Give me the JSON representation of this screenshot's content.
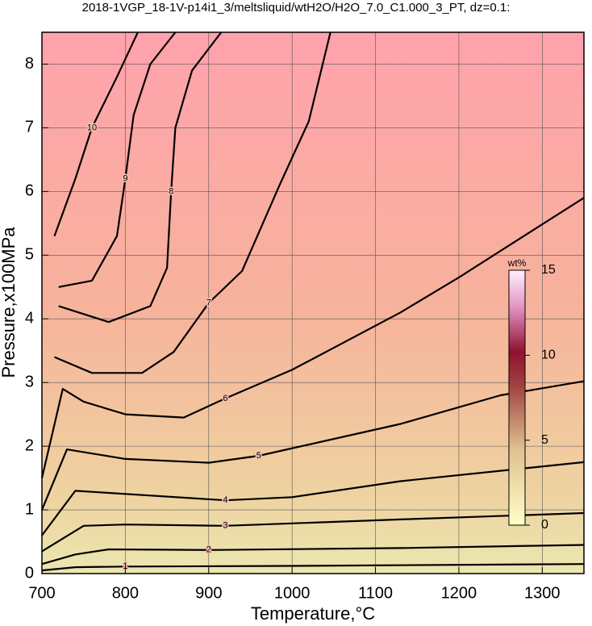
{
  "chart_data": {
    "type": "contour",
    "title": "2018-1VGP_18-1V-p14i1_3/meltsliquid/wtH2O/H2O_7.0_C1.000_3_PT, dz=0.1:",
    "xlabel": "Temperature,°C",
    "ylabel": "Pressure,x100MPa",
    "xlim": [
      700,
      1350
    ],
    "ylim": [
      0,
      8.5
    ],
    "xticks": [
      700,
      800,
      900,
      1000,
      1100,
      1200,
      1300
    ],
    "yticks": [
      0,
      1,
      2,
      3,
      4,
      5,
      6,
      7,
      8
    ],
    "grid": true,
    "series": [
      {
        "name": "1",
        "x": [
          700,
          740,
          800,
          1000,
          1350
        ],
        "y": [
          0.05,
          0.1,
          0.11,
          0.12,
          0.15
        ]
      },
      {
        "name": "2",
        "x": [
          700,
          740,
          780,
          900,
          1130,
          1350
        ],
        "y": [
          0.15,
          0.3,
          0.38,
          0.37,
          0.4,
          0.45
        ]
      },
      {
        "name": "3",
        "x": [
          700,
          750,
          800,
          920,
          1130,
          1350
        ],
        "y": [
          0.35,
          0.75,
          0.77,
          0.75,
          0.85,
          0.95
        ]
      },
      {
        "name": "4",
        "x": [
          700,
          740,
          800,
          920,
          1000,
          1130,
          1350
        ],
        "y": [
          0.6,
          1.3,
          1.25,
          1.15,
          1.2,
          1.45,
          1.75
        ]
      },
      {
        "name": "5",
        "x": [
          700,
          730,
          800,
          900,
          960,
          1130,
          1250,
          1350
        ],
        "y": [
          1.0,
          1.95,
          1.8,
          1.74,
          1.85,
          2.35,
          2.8,
          3.02
        ]
      },
      {
        "name": "6",
        "x": [
          700,
          725,
          750,
          800,
          870,
          920,
          1000,
          1130,
          1200,
          1350
        ],
        "y": [
          1.5,
          2.9,
          2.7,
          2.5,
          2.45,
          2.75,
          3.2,
          4.1,
          4.65,
          5.9
        ]
      },
      {
        "name": "7",
        "x": [
          715,
          760,
          820,
          858,
          900,
          940,
          985,
          1020,
          1046
        ],
        "y": [
          3.4,
          3.15,
          3.15,
          3.48,
          4.25,
          4.75,
          6.1,
          7.1,
          8.5
        ]
      },
      {
        "name": "8",
        "x": [
          720,
          780,
          830,
          850,
          855,
          860,
          880,
          915
        ],
        "y": [
          4.2,
          3.95,
          4.2,
          4.8,
          6.0,
          7.0,
          7.9,
          8.5
        ]
      },
      {
        "name": "9",
        "x": [
          720,
          760,
          790,
          800,
          810,
          830,
          860
        ],
        "y": [
          4.5,
          4.6,
          5.3,
          6.2,
          7.2,
          8.0,
          8.5
        ]
      },
      {
        "name": "10",
        "x": [
          715,
          740,
          760,
          790,
          815
        ],
        "y": [
          5.3,
          6.2,
          7.0,
          7.8,
          8.5
        ]
      }
    ],
    "colorbar": {
      "label": "wt%",
      "lim": [
        0,
        15
      ],
      "ticks": [
        0,
        5,
        10,
        15
      ]
    }
  }
}
